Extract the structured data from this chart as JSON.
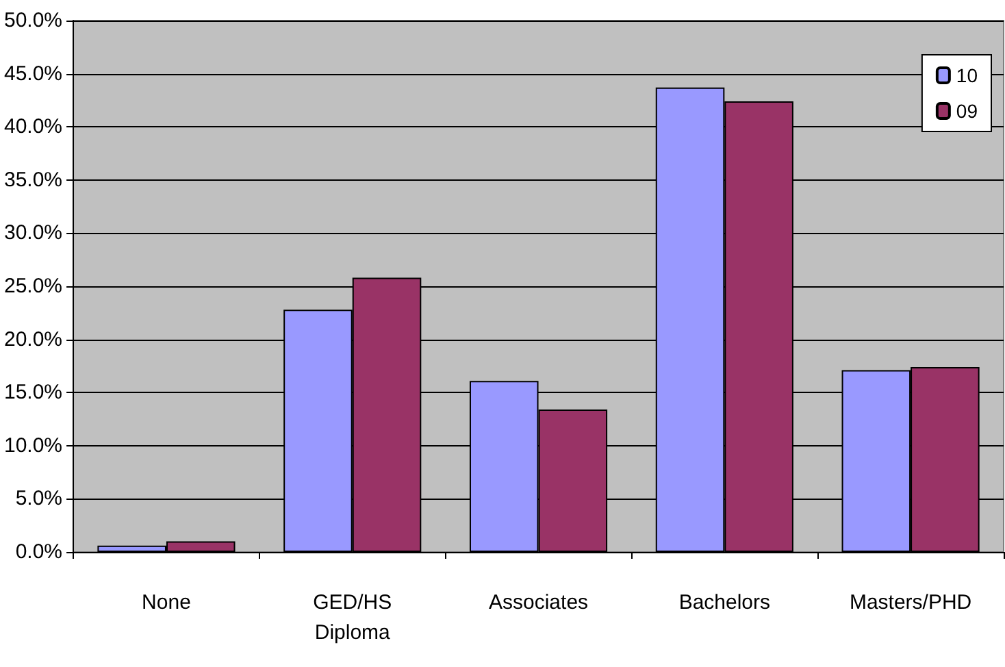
{
  "chart_data": {
    "type": "bar",
    "categories": [
      "None",
      "GED/HS\nDiploma",
      "Associates",
      "Bachelors",
      "Masters/PHD"
    ],
    "series": [
      {
        "name": "10",
        "color": "#9999ff",
        "values": [
          0.6,
          22.8,
          16.1,
          43.7,
          17.1
        ]
      },
      {
        "name": "09",
        "color": "#993366",
        "values": [
          1.0,
          25.8,
          13.4,
          42.4,
          17.4
        ]
      }
    ],
    "ylim": [
      0,
      50
    ],
    "yticks": [
      {
        "value": 0,
        "label": "0.0%"
      },
      {
        "value": 5,
        "label": "5.0%"
      },
      {
        "value": 10,
        "label": "10.0%"
      },
      {
        "value": 15,
        "label": "15.0%"
      },
      {
        "value": 20,
        "label": "20.0%"
      },
      {
        "value": 25,
        "label": "25.0%"
      },
      {
        "value": 30,
        "label": "30.0%"
      },
      {
        "value": 35,
        "label": "35.0%"
      },
      {
        "value": 40,
        "label": "40.0%"
      },
      {
        "value": 45,
        "label": "45.0%"
      },
      {
        "value": 50,
        "label": "50.0%"
      }
    ],
    "grid": "y",
    "legend": "top right"
  }
}
